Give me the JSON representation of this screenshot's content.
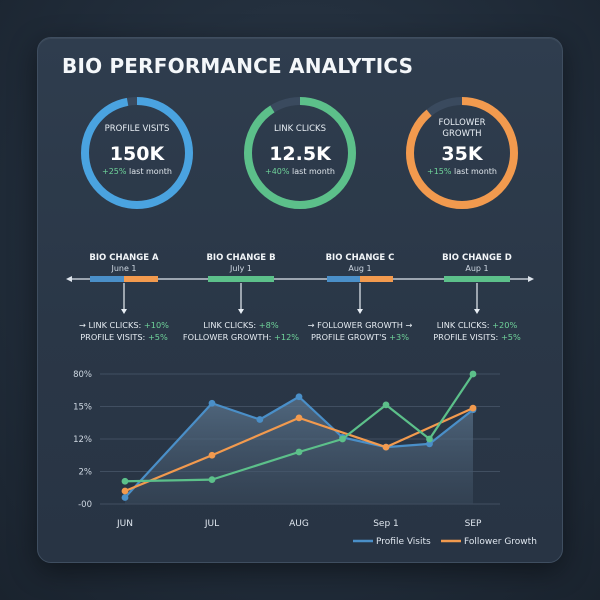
{
  "title": "BIO PERFORMANCE ANALYTICS",
  "colors": {
    "blue": "#4a8fc8",
    "green": "#5cc08a",
    "orange": "#f29a4e",
    "positive": "#6fd39a"
  },
  "kpis": [
    {
      "label": [
        "PROFILE VISITS"
      ],
      "value": "150K",
      "change": "+25%",
      "change_suffix": " last month",
      "color": "#4aa3e0",
      "progress": 0.97
    },
    {
      "label": [
        "LINK CLICKS"
      ],
      "value": "12.5K",
      "change": "+40%",
      "change_suffix": " last month",
      "color": "#5cc08a",
      "progress": 0.91
    },
    {
      "label": [
        "FOLLOWER",
        "GROWTH"
      ],
      "value": "35K",
      "change": "+15%",
      "change_suffix": " last month",
      "color": "#f29a4e",
      "progress": 0.89
    }
  ],
  "timeline": [
    {
      "title": "BIO CHANGE A",
      "date": "June 1",
      "lines": [
        {
          "prefix": "→ ",
          "text": "LINK CLICKS: ",
          "delta": "+10%",
          "suffix": ""
        },
        {
          "prefix": "",
          "text": "PROFILE VISITS: ",
          "delta": "+5%",
          "suffix": ""
        }
      ]
    },
    {
      "title": "BIO CHANGE B",
      "date": "July 1",
      "lines": [
        {
          "prefix": "",
          "text": "LINK CLICKS: ",
          "delta": "+8%",
          "suffix": ""
        },
        {
          "prefix": "",
          "text": "FOLLOWER GROWTH: ",
          "delta": "+12%",
          "suffix": ""
        }
      ]
    },
    {
      "title": "BIO CHANGE C",
      "date": "Aug 1",
      "lines": [
        {
          "prefix": "→ ",
          "text": "FOLLOWER GROWTH",
          "delta": "",
          "suffix": " →"
        },
        {
          "prefix": "",
          "text": "PROFILE GROWT'S ",
          "delta": "+3%",
          "suffix": ""
        }
      ]
    },
    {
      "title": "BIO CHANGE D",
      "date": "Aup 1",
      "lines": [
        {
          "prefix": "",
          "text": "LINK CLICKS: ",
          "delta": "+20%",
          "suffix": ""
        },
        {
          "prefix": "",
          "text": "PROFILE VISITS: ",
          "delta": "+5%",
          "suffix": ""
        }
      ]
    }
  ],
  "chart_data": {
    "type": "line",
    "title": "",
    "x": [
      "JUN",
      "JUL",
      "AUG",
      "Sep 1",
      "SEP"
    ],
    "y_tick_labels": [
      "80%",
      "15%",
      "12%",
      "2%",
      "-00"
    ],
    "grid": true,
    "legend_position": "bottom-right",
    "series": [
      {
        "name": "Profile Visits",
        "color": "#4a8fc8",
        "x": [
          0,
          1,
          1.55,
          2,
          2.5,
          3,
          3.5,
          4
        ],
        "y": [
          0.2,
          3.1,
          2.6,
          3.3,
          2.05,
          1.75,
          1.85,
          2.9
        ],
        "area": true
      },
      {
        "name": "Follower Growth",
        "color": "#f29a4e",
        "x": [
          0,
          1,
          2,
          3,
          4
        ],
        "y": [
          0.4,
          1.5,
          2.65,
          1.75,
          2.95
        ]
      },
      {
        "name": "",
        "color": "#5cc08a",
        "x": [
          0,
          1,
          2,
          2.5,
          3,
          3.5,
          4
        ],
        "y": [
          0.7,
          0.75,
          1.6,
          2.0,
          3.05,
          2.0,
          4.0
        ]
      }
    ]
  }
}
